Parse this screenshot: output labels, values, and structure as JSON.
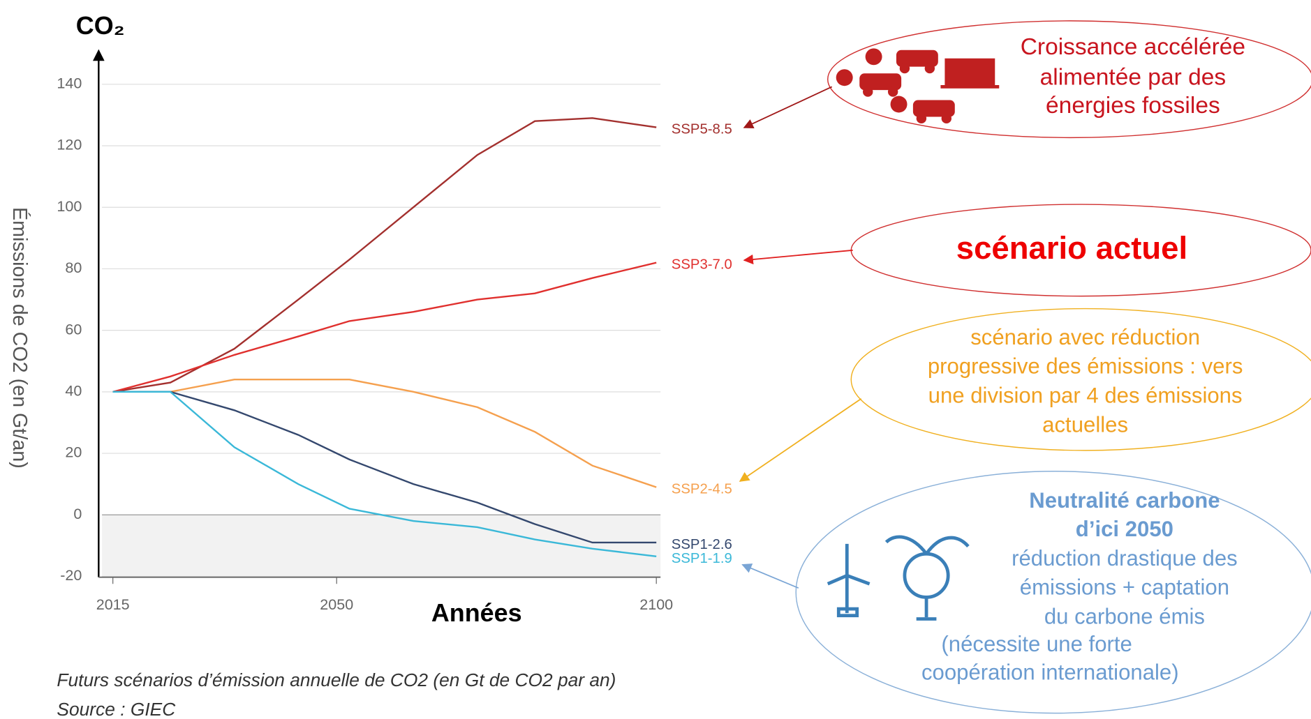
{
  "chart_data": {
    "type": "line",
    "title": "CO₂",
    "ylabel": "Émissions de CO2 (en Gt/an)",
    "xlabel": "Années",
    "xlim": [
      2015,
      2100
    ],
    "xticks": [
      2015,
      2050,
      2100
    ],
    "ylim": [
      -20,
      140
    ],
    "yticks": [
      -20,
      0,
      20,
      40,
      60,
      80,
      100,
      120,
      140
    ],
    "grid": true,
    "x": [
      2015,
      2024,
      2034,
      2044,
      2052,
      2062,
      2072,
      2081,
      2090,
      2100
    ],
    "series": [
      {
        "name": "SSP5-8.5",
        "color": "#a3302e",
        "values": [
          40,
          43,
          54,
          70,
          83,
          100,
          117,
          128,
          129,
          126
        ]
      },
      {
        "name": "SSP3-7.0",
        "color": "#e0302e",
        "values": [
          40,
          45,
          52,
          58,
          63,
          66,
          70,
          72,
          77,
          82
        ]
      },
      {
        "name": "SSP2-4.5",
        "color": "#f5a04e",
        "values": [
          40,
          40,
          44,
          44,
          44,
          40,
          35,
          27,
          16,
          9
        ]
      },
      {
        "name": "SSP1-2.6",
        "color": "#34486e",
        "values": [
          40,
          40,
          34,
          26,
          18,
          10,
          4,
          -3,
          -9,
          -9
        ]
      },
      {
        "name": "SSP1-1.9",
        "color": "#3ab8d8",
        "values": [
          40,
          40,
          22,
          10,
          2,
          -2,
          -4,
          -8,
          -11,
          -13.5
        ]
      }
    ]
  },
  "caption": [
    "Futurs scénarios d’émission annuelle de CO2 (en Gt de CO2 par an)",
    "Source : GIEC"
  ],
  "annotations": {
    "fossil": [
      "Croissance accélérée",
      "alimentée par des",
      "énergies fossiles"
    ],
    "current": "scénario actuel",
    "reduction": [
      "scénario avec réduction",
      "progressive des émissions : vers",
      "une division par 4 des émissions",
      "actuelles"
    ],
    "neutral_title": [
      "Neutralité carbone",
      "d’ici 2050"
    ],
    "neutral_text": [
      "réduction drastique des",
      "émissions + captation",
      "du carbone émis"
    ],
    "neutral_note": [
      "(nécessite une forte",
      "coopération internationale)"
    ]
  }
}
